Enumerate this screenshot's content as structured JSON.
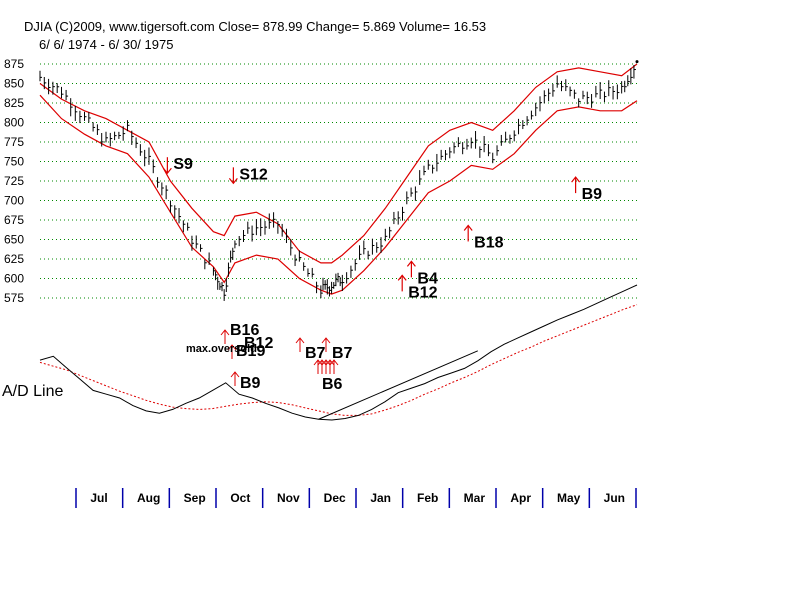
{
  "header": {
    "line1": "DJIA     (C)2009, www.tigersoft.com     Close=  878.99  Change= 5.869 Volume= 16.53",
    "line2": "6/ 6/ 1974 - 6/ 30/ 1975"
  },
  "colors": {
    "price": "#000000",
    "bands": "#dd0000",
    "grid": "#008800",
    "signals": "#dd0000",
    "month_ticks": "#0000aa",
    "ad_line": "#000000",
    "ad_ma": "#dd0000"
  },
  "chart_data": [
    {
      "type": "line",
      "subtype": "daily bar chart with moving-average bands",
      "title": "DJIA",
      "y_ticks": [
        875,
        850,
        825,
        800,
        775,
        750,
        725,
        700,
        675,
        650,
        625,
        600,
        575
      ],
      "ylim": [
        575,
        875
      ],
      "grid": true,
      "x_labels": [
        "Jul",
        "Aug",
        "Sep",
        "Oct",
        "Nov",
        "Dec",
        "Jan",
        "Feb",
        "Mar",
        "Apr",
        "May",
        "Jun"
      ],
      "x": [
        "1974-06-06",
        "1974-06-20",
        "1974-07-05",
        "1974-07-19",
        "1974-08-02",
        "1974-08-16",
        "1974-08-30",
        "1974-09-13",
        "1974-09-27",
        "1974-10-04",
        "1974-10-11",
        "1974-10-25",
        "1974-11-08",
        "1974-11-22",
        "1974-12-06",
        "1974-12-13",
        "1974-12-20",
        "1975-01-03",
        "1975-01-17",
        "1975-01-31",
        "1975-02-14",
        "1975-02-28",
        "1975-03-14",
        "1975-03-28",
        "1975-04-11",
        "1975-04-25",
        "1975-05-09",
        "1975-05-23",
        "1975-06-06",
        "1975-06-20",
        "1975-06-30"
      ],
      "series": [
        {
          "name": "DJIA",
          "values": [
            858,
            840,
            805,
            775,
            790,
            750,
            700,
            650,
            610,
            584,
            650,
            665,
            670,
            620,
            585,
            592,
            600,
            632,
            650,
            700,
            740,
            765,
            780,
            755,
            790,
            820,
            850,
            830,
            835,
            845,
            878
          ]
        },
        {
          "name": "Upper Band",
          "values": [
            850,
            830,
            815,
            805,
            790,
            775,
            725,
            690,
            660,
            655,
            680,
            685,
            670,
            635,
            620,
            620,
            630,
            655,
            690,
            730,
            770,
            790,
            800,
            790,
            815,
            845,
            865,
            870,
            865,
            860,
            875
          ]
        },
        {
          "name": "Lower Band",
          "values": [
            835,
            805,
            785,
            770,
            760,
            730,
            685,
            640,
            615,
            595,
            620,
            630,
            625,
            600,
            585,
            580,
            585,
            610,
            640,
            675,
            710,
            725,
            745,
            740,
            760,
            790,
            815,
            820,
            815,
            815,
            828
          ]
        }
      ],
      "signals": [
        {
          "label": "S9",
          "x": "1974-08-28",
          "y": 735,
          "direction": "down"
        },
        {
          "label": "S12",
          "x": "1974-10-10",
          "y": 722,
          "direction": "down"
        },
        {
          "label": "B9",
          "x": "1975-05-21",
          "y": 730,
          "direction": "up"
        },
        {
          "label": "B18",
          "x": "1975-03-12",
          "y": 668,
          "direction": "up"
        },
        {
          "label": "B4",
          "x": "1975-02-03",
          "y": 622,
          "direction": "up"
        },
        {
          "label": "B12",
          "x": "1975-01-28",
          "y": 604,
          "direction": "up"
        }
      ]
    },
    {
      "type": "line",
      "title": "A/D Line",
      "series": [
        {
          "name": "A/D Line",
          "values": [
            585,
            590,
            575,
            560,
            545,
            540,
            535,
            525,
            518,
            515,
            520,
            528,
            535,
            545,
            555,
            540,
            535,
            528,
            522,
            515,
            510,
            507,
            506,
            508,
            512,
            520,
            530,
            542,
            548,
            554,
            562,
            568,
            574,
            584,
            596,
            606,
            614,
            622,
            630,
            638,
            645,
            652,
            660,
            668,
            676,
            684
          ]
        },
        {
          "name": "A/D MA",
          "values": [
            582,
            577,
            572,
            565,
            558,
            551,
            544,
            538,
            532,
            527,
            523,
            521,
            520,
            521,
            524,
            527,
            529,
            530,
            529,
            526,
            522,
            518,
            514,
            512,
            512,
            514,
            519,
            525,
            532,
            540,
            547,
            555,
            562,
            570,
            579,
            587,
            595,
            602,
            610,
            617,
            624,
            631,
            638,
            645,
            652,
            658
          ]
        }
      ],
      "annotations": [
        "B16",
        "B12",
        "B19",
        "B9",
        "max.oversold",
        "B7",
        "B7",
        "B6"
      ]
    }
  ]
}
